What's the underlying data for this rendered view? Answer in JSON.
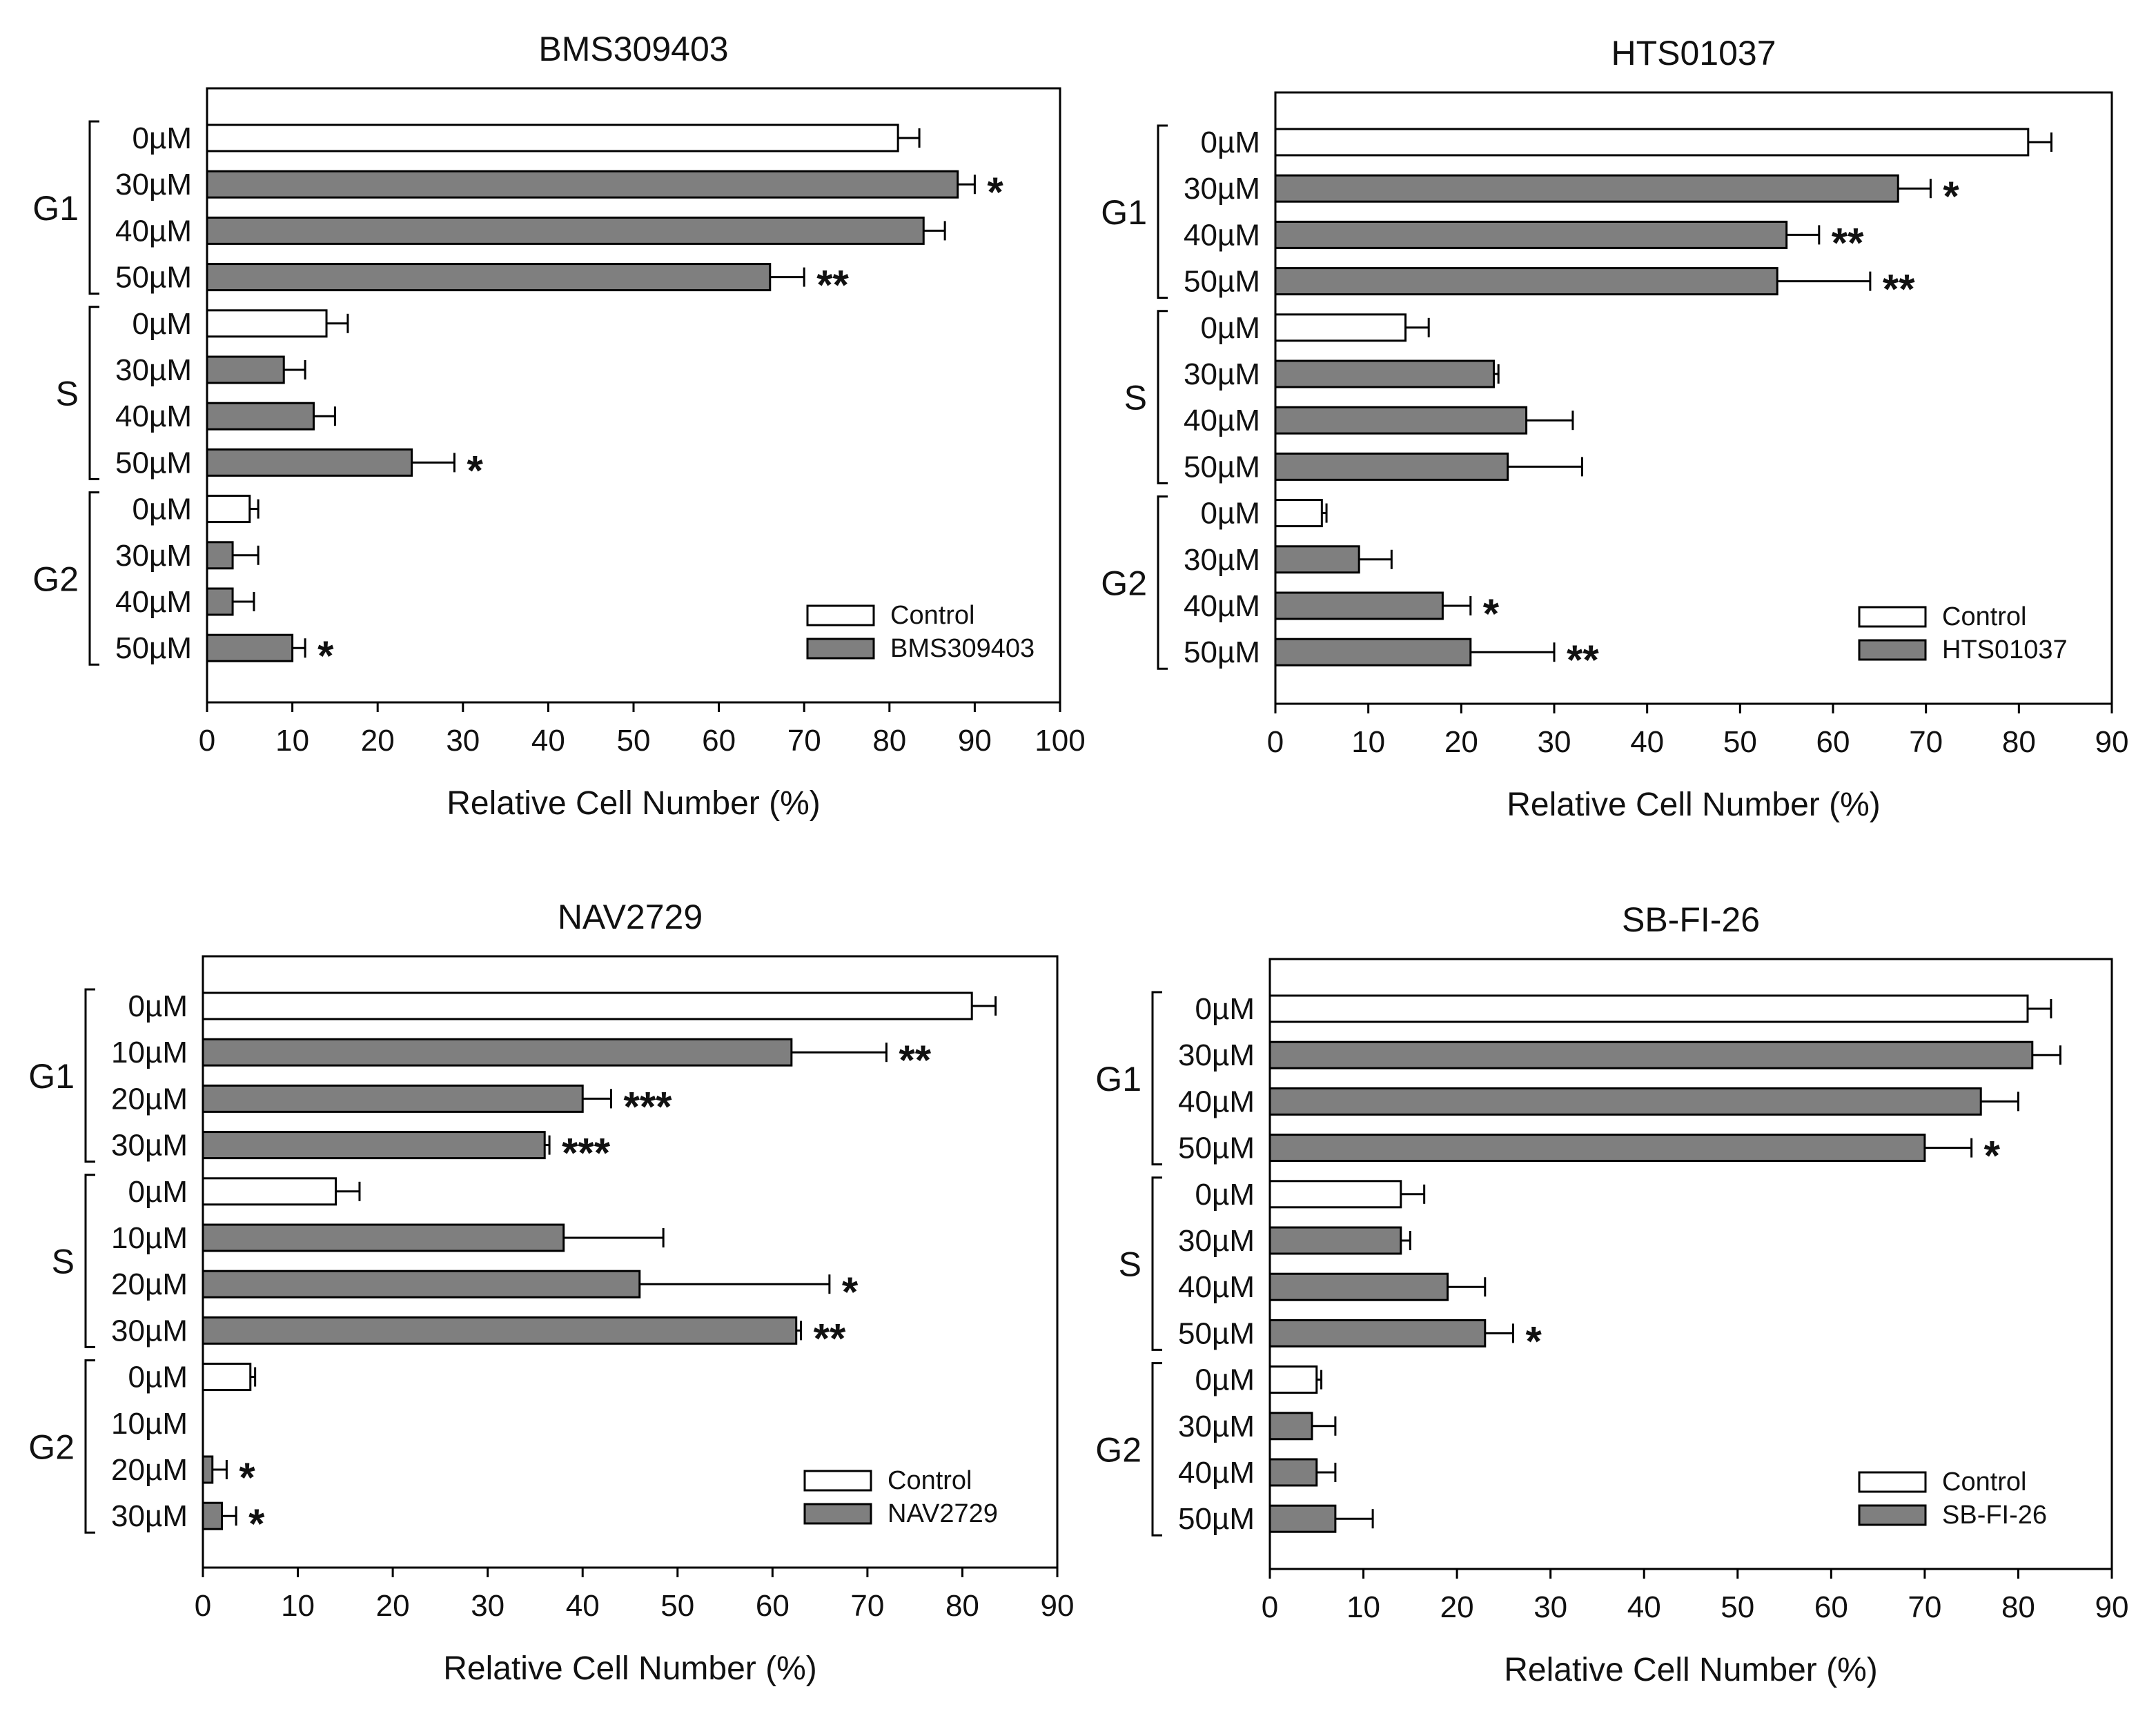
{
  "colors": {
    "control": "#ffffff",
    "treatment": "#7f7f7f",
    "stroke": "#000000",
    "background": "#ffffff"
  },
  "chart_data": [
    {
      "type": "bar",
      "orientation": "horizontal",
      "title": "BMS309403",
      "xlabel": "Relative Cell Number (%)",
      "xlim": [
        0,
        100
      ],
      "xticks": [
        "0",
        "10",
        "20",
        "30",
        "40",
        "50",
        "60",
        "70",
        "80",
        "90",
        "100"
      ],
      "groups": [
        {
          "phase": "G1",
          "rows": [
            {
              "label": "0µM",
              "series": "Control",
              "value": 81,
              "error": 2.5,
              "sig": ""
            },
            {
              "label": "30µM",
              "series": "BMS309403",
              "value": 88,
              "error": 2,
              "sig": "*"
            },
            {
              "label": "40µM",
              "series": "BMS309403",
              "value": 84,
              "error": 2.5,
              "sig": ""
            },
            {
              "label": "50µM",
              "series": "BMS309403",
              "value": 66,
              "error": 4,
              "sig": "**"
            }
          ]
        },
        {
          "phase": "S",
          "rows": [
            {
              "label": "0µM",
              "series": "Control",
              "value": 14,
              "error": 2.5,
              "sig": ""
            },
            {
              "label": "30µM",
              "series": "BMS309403",
              "value": 9,
              "error": 2.5,
              "sig": ""
            },
            {
              "label": "40µM",
              "series": "BMS309403",
              "value": 12.5,
              "error": 2.5,
              "sig": ""
            },
            {
              "label": "50µM",
              "series": "BMS309403",
              "value": 24,
              "error": 5,
              "sig": "*"
            }
          ]
        },
        {
          "phase": "G2",
          "rows": [
            {
              "label": "0µM",
              "series": "Control",
              "value": 5,
              "error": 1,
              "sig": ""
            },
            {
              "label": "30µM",
              "series": "BMS309403",
              "value": 3,
              "error": 3,
              "sig": ""
            },
            {
              "label": "40µM",
              "series": "BMS309403",
              "value": 3,
              "error": 2.5,
              "sig": ""
            },
            {
              "label": "50µM",
              "series": "BMS309403",
              "value": 10,
              "error": 1.5,
              "sig": "*"
            }
          ]
        }
      ],
      "legend": [
        "Control",
        "BMS309403"
      ],
      "legend_position": "bottom-right"
    },
    {
      "type": "bar",
      "orientation": "horizontal",
      "title": "HTS01037",
      "xlabel": "Relative Cell Number (%)",
      "xlim": [
        0,
        90
      ],
      "xticks": [
        "0",
        "10",
        "20",
        "30",
        "40",
        "50",
        "60",
        "70",
        "80",
        "90"
      ],
      "groups": [
        {
          "phase": "G1",
          "rows": [
            {
              "label": "0µM",
              "series": "Control",
              "value": 81,
              "error": 2.5,
              "sig": ""
            },
            {
              "label": "30µM",
              "series": "HTS01037",
              "value": 67,
              "error": 3.5,
              "sig": "*"
            },
            {
              "label": "40µM",
              "series": "HTS01037",
              "value": 55,
              "error": 3.5,
              "sig": "**"
            },
            {
              "label": "50µM",
              "series": "HTS01037",
              "value": 54,
              "error": 10,
              "sig": "**"
            }
          ]
        },
        {
          "phase": "S",
          "rows": [
            {
              "label": "0µM",
              "series": "Control",
              "value": 14,
              "error": 2.5,
              "sig": ""
            },
            {
              "label": "30µM",
              "series": "HTS01037",
              "value": 23.5,
              "error": 0.5,
              "sig": ""
            },
            {
              "label": "40µM",
              "series": "HTS01037",
              "value": 27,
              "error": 5,
              "sig": ""
            },
            {
              "label": "50µM",
              "series": "HTS01037",
              "value": 25,
              "error": 8,
              "sig": ""
            }
          ]
        },
        {
          "phase": "G2",
          "rows": [
            {
              "label": "0µM",
              "series": "Control",
              "value": 5,
              "error": 0.5,
              "sig": ""
            },
            {
              "label": "30µM",
              "series": "HTS01037",
              "value": 9,
              "error": 3.5,
              "sig": ""
            },
            {
              "label": "40µM",
              "series": "HTS01037",
              "value": 18,
              "error": 3,
              "sig": "*"
            },
            {
              "label": "50µM",
              "series": "HTS01037",
              "value": 21,
              "error": 9,
              "sig": "**"
            }
          ]
        }
      ],
      "legend": [
        "Control",
        "HTS01037"
      ],
      "legend_position": "bottom-right"
    },
    {
      "type": "bar",
      "orientation": "horizontal",
      "title": "NAV2729",
      "xlabel": "Relative Cell Number (%)",
      "xlim": [
        0,
        90
      ],
      "xticks": [
        "0",
        "10",
        "20",
        "30",
        "40",
        "50",
        "60",
        "70",
        "80",
        "90"
      ],
      "groups": [
        {
          "phase": "G1",
          "rows": [
            {
              "label": "0µM",
              "series": "Control",
              "value": 81,
              "error": 2.5,
              "sig": ""
            },
            {
              "label": "10µM",
              "series": "NAV2729",
              "value": 62,
              "error": 10,
              "sig": "**"
            },
            {
              "label": "20µM",
              "series": "NAV2729",
              "value": 40,
              "error": 3,
              "sig": "***"
            },
            {
              "label": "30µM",
              "series": "NAV2729",
              "value": 36,
              "error": 0.5,
              "sig": "***"
            }
          ]
        },
        {
          "phase": "S",
          "rows": [
            {
              "label": "0µM",
              "series": "Control",
              "value": 14,
              "error": 2.5,
              "sig": ""
            },
            {
              "label": "10µM",
              "series": "NAV2729",
              "value": 38,
              "error": 10.5,
              "sig": ""
            },
            {
              "label": "20µM",
              "series": "NAV2729",
              "value": 46,
              "error": 20,
              "sig": "*"
            },
            {
              "label": "30µM",
              "series": "NAV2729",
              "value": 62.5,
              "error": 0.5,
              "sig": "**"
            }
          ]
        },
        {
          "phase": "G2",
          "rows": [
            {
              "label": "0µM",
              "series": "Control",
              "value": 5,
              "error": 0.5,
              "sig": ""
            },
            {
              "label": "10µM",
              "series": "NAV2729",
              "value": 0,
              "error": 0,
              "sig": ""
            },
            {
              "label": "20µM",
              "series": "NAV2729",
              "value": 1,
              "error": 1.5,
              "sig": "*"
            },
            {
              "label": "30µM",
              "series": "NAV2729",
              "value": 2,
              "error": 1.5,
              "sig": "*"
            }
          ]
        }
      ],
      "legend": [
        "Control",
        "NAV2729"
      ],
      "legend_position": "bottom-right"
    },
    {
      "type": "bar",
      "orientation": "horizontal",
      "title": "SB-FI-26",
      "xlabel": "Relative Cell Number (%)",
      "xlim": [
        0,
        90
      ],
      "xticks": [
        "0",
        "10",
        "20",
        "30",
        "40",
        "50",
        "60",
        "70",
        "80",
        "90"
      ],
      "groups": [
        {
          "phase": "G1",
          "rows": [
            {
              "label": "0µM",
              "series": "Control",
              "value": 81,
              "error": 2.5,
              "sig": ""
            },
            {
              "label": "30µM",
              "series": "SB-FI-26",
              "value": 81.5,
              "error": 3,
              "sig": ""
            },
            {
              "label": "40µM",
              "series": "SB-FI-26",
              "value": 76,
              "error": 4,
              "sig": ""
            },
            {
              "label": "50µM",
              "series": "SB-FI-26",
              "value": 70,
              "error": 5,
              "sig": "*"
            }
          ]
        },
        {
          "phase": "S",
          "rows": [
            {
              "label": "0µM",
              "series": "Control",
              "value": 14,
              "error": 2.5,
              "sig": ""
            },
            {
              "label": "30µM",
              "series": "SB-FI-26",
              "value": 14,
              "error": 1,
              "sig": ""
            },
            {
              "label": "40µM",
              "series": "SB-FI-26",
              "value": 19,
              "error": 4,
              "sig": ""
            },
            {
              "label": "50µM",
              "series": "SB-FI-26",
              "value": 23,
              "error": 3,
              "sig": "*"
            }
          ]
        },
        {
          "phase": "G2",
          "rows": [
            {
              "label": "0µM",
              "series": "Control",
              "value": 5,
              "error": 0.5,
              "sig": ""
            },
            {
              "label": "30µM",
              "series": "SB-FI-26",
              "value": 4.5,
              "error": 2.5,
              "sig": ""
            },
            {
              "label": "40µM",
              "series": "SB-FI-26",
              "value": 5,
              "error": 2,
              "sig": ""
            },
            {
              "label": "50µM",
              "series": "SB-FI-26",
              "value": 7,
              "error": 4,
              "sig": ""
            }
          ]
        }
      ],
      "legend": [
        "Control",
        "SB-FI-26"
      ],
      "legend_position": "bottom-right"
    }
  ]
}
